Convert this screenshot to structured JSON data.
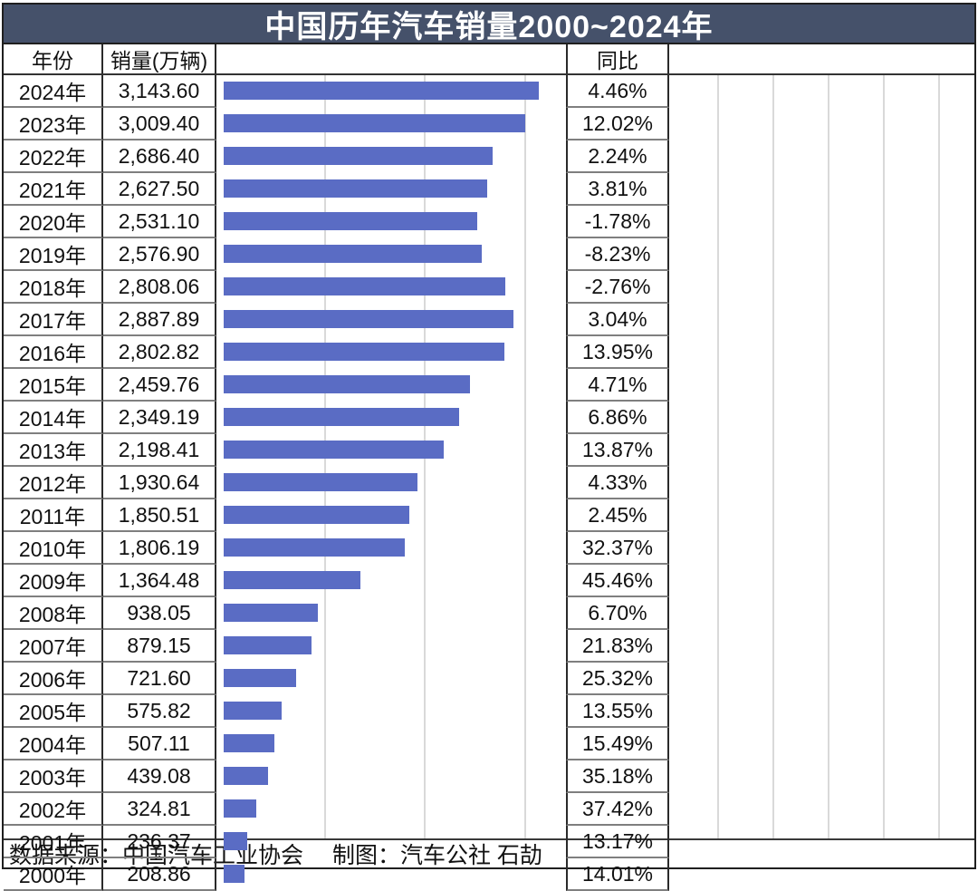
{
  "title": "中国历年汽车销量2000~2024年",
  "header": {
    "year": "年份",
    "sales": "销量(万辆)",
    "yoy": "同比"
  },
  "footer": "数据来源：中国汽车工业协会　 制图：汽车公社 石劼",
  "colors": {
    "title_bg": "#45516A",
    "title_text": "#FFFFFF",
    "sales_bar": "#5A6CC4",
    "yoy_bar_positive_start": "#3E6EC6",
    "yoy_bar_positive_end": "#AECBEE",
    "yoy_bar_positive_border": "#3A62B5",
    "yoy_bar_negative_fill": "#F79DA4",
    "yoy_bar_negative_border": "#4D5A9B",
    "grid": "#D9D9D9"
  },
  "chart_data": {
    "type": "bar",
    "orientation": "horizontal",
    "title": "中国历年汽车销量2000~2024年",
    "grid": true,
    "legend": false,
    "categories": [
      "2024年",
      "2023年",
      "2022年",
      "2021年",
      "2020年",
      "2019年",
      "2018年",
      "2017年",
      "2016年",
      "2015年",
      "2014年",
      "2013年",
      "2012年",
      "2011年",
      "2010年",
      "2009年",
      "2008年",
      "2007年",
      "2006年",
      "2005年",
      "2004年",
      "2003年",
      "2002年",
      "2001年",
      "2000年"
    ],
    "series": [
      {
        "name": "销量(万辆)",
        "values": [
          3143.6,
          3009.4,
          2686.4,
          2627.5,
          2531.1,
          2576.9,
          2808.06,
          2887.89,
          2802.82,
          2459.76,
          2349.19,
          2198.41,
          1930.64,
          1850.51,
          1806.19,
          1364.48,
          938.05,
          879.15,
          721.6,
          575.82,
          507.11,
          439.08,
          324.81,
          236.37,
          208.86
        ]
      },
      {
        "name": "同比",
        "unit": "%",
        "values": [
          4.46,
          12.02,
          2.24,
          3.81,
          -1.78,
          -8.23,
          -2.76,
          3.04,
          13.95,
          4.71,
          6.86,
          13.87,
          4.33,
          2.45,
          32.37,
          45.46,
          6.7,
          21.83,
          25.32,
          13.55,
          15.49,
          35.18,
          37.42,
          13.17,
          14.01
        ]
      }
    ],
    "sales_display": [
      "3,143.60",
      "3,009.40",
      "2,686.40",
      "2,627.50",
      "2,531.10",
      "2,576.90",
      "2,808.06",
      "2,887.89",
      "2,802.82",
      "2,459.76",
      "2,349.19",
      "2,198.41",
      "1,930.64",
      "1,850.51",
      "1,806.19",
      "1,364.48",
      "938.05",
      "879.15",
      "721.60",
      "575.82",
      "507.11",
      "439.08",
      "324.81",
      "236.37",
      "208.86"
    ],
    "yoy_display": [
      "4.46%",
      "12.02%",
      "2.24%",
      "3.81%",
      "-1.78%",
      "-8.23%",
      "-2.76%",
      "3.04%",
      "13.95%",
      "4.71%",
      "6.86%",
      "13.87%",
      "4.33%",
      "2.45%",
      "32.37%",
      "45.46%",
      "6.70%",
      "21.83%",
      "25.32%",
      "13.55%",
      "15.49%",
      "35.18%",
      "37.42%",
      "13.17%",
      "14.01%"
    ],
    "sales_axis": {
      "min": 0,
      "max": 3500,
      "gridlines": [
        1000,
        2000,
        3000
      ]
    },
    "yoy_axis": {
      "min": -10,
      "max": 47,
      "unit": "%",
      "gridlines": [
        0,
        10,
        20,
        30,
        40
      ]
    }
  }
}
